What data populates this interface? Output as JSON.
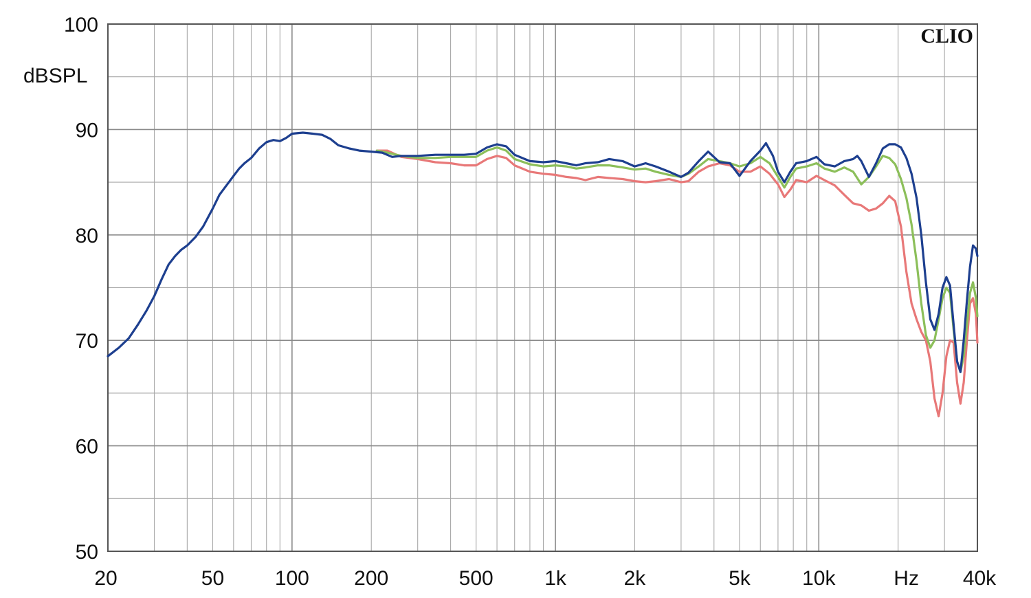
{
  "chart_data": {
    "type": "line",
    "x_scale": "log",
    "xlim": [
      20,
      40000
    ],
    "ylim": [
      50,
      100
    ],
    "grid": true,
    "ylabel": "dBSPL",
    "xunit_label": "Hz",
    "watermark": "CLIO",
    "x_ticks": [
      {
        "value": 20,
        "label": "20"
      },
      {
        "value": 50,
        "label": "50"
      },
      {
        "value": 100,
        "label": "100"
      },
      {
        "value": 200,
        "label": "200"
      },
      {
        "value": 500,
        "label": "500"
      },
      {
        "value": 1000,
        "label": "1k"
      },
      {
        "value": 2000,
        "label": "2k"
      },
      {
        "value": 5000,
        "label": "5k"
      },
      {
        "value": 10000,
        "label": "10k"
      },
      {
        "value": 40000,
        "label": "40k"
      }
    ],
    "hz_label_at": 20000,
    "y_ticks": [
      {
        "value": 100,
        "label": "100"
      },
      {
        "value": 90,
        "label": "90"
      },
      {
        "value": 80,
        "label": "80"
      },
      {
        "value": 70,
        "label": "70"
      },
      {
        "value": 60,
        "label": "60"
      },
      {
        "value": 50,
        "label": "50"
      }
    ],
    "series": [
      {
        "color": "#e87878",
        "points": [
          [
            210,
            88.0
          ],
          [
            230,
            88.0
          ],
          [
            260,
            87.4
          ],
          [
            300,
            87.2
          ],
          [
            350,
            86.9
          ],
          [
            400,
            86.8
          ],
          [
            450,
            86.6
          ],
          [
            500,
            86.6
          ],
          [
            550,
            87.2
          ],
          [
            600,
            87.5
          ],
          [
            650,
            87.3
          ],
          [
            700,
            86.6
          ],
          [
            800,
            86.0
          ],
          [
            900,
            85.8
          ],
          [
            1000,
            85.7
          ],
          [
            1100,
            85.5
          ],
          [
            1200,
            85.4
          ],
          [
            1300,
            85.2
          ],
          [
            1450,
            85.5
          ],
          [
            1600,
            85.4
          ],
          [
            1800,
            85.3
          ],
          [
            2000,
            85.1
          ],
          [
            2200,
            85.0
          ],
          [
            2400,
            85.1
          ],
          [
            2700,
            85.3
          ],
          [
            3000,
            85.0
          ],
          [
            3200,
            85.1
          ],
          [
            3500,
            86.0
          ],
          [
            3800,
            86.5
          ],
          [
            4200,
            86.8
          ],
          [
            4600,
            86.6
          ],
          [
            5000,
            86.0
          ],
          [
            5500,
            86.0
          ],
          [
            6000,
            86.5
          ],
          [
            6500,
            85.8
          ],
          [
            7000,
            84.8
          ],
          [
            7400,
            83.6
          ],
          [
            7800,
            84.3
          ],
          [
            8200,
            85.2
          ],
          [
            9000,
            85.0
          ],
          [
            9800,
            85.6
          ],
          [
            10500,
            85.2
          ],
          [
            11500,
            84.7
          ],
          [
            12500,
            83.8
          ],
          [
            13500,
            83.0
          ],
          [
            14500,
            82.8
          ],
          [
            15500,
            82.3
          ],
          [
            16500,
            82.5
          ],
          [
            17500,
            83.0
          ],
          [
            18500,
            83.7
          ],
          [
            19500,
            83.2
          ],
          [
            20500,
            80.8
          ],
          [
            21500,
            76.5
          ],
          [
            22500,
            73.5
          ],
          [
            23500,
            72.0
          ],
          [
            24500,
            70.8
          ],
          [
            25500,
            70.0
          ],
          [
            26500,
            68.0
          ],
          [
            27500,
            64.5
          ],
          [
            28500,
            62.8
          ],
          [
            29500,
            65.0
          ],
          [
            30500,
            68.5
          ],
          [
            31500,
            70.0
          ],
          [
            32500,
            69.8
          ],
          [
            33500,
            66.0
          ],
          [
            34500,
            64.0
          ],
          [
            35500,
            66.0
          ],
          [
            36500,
            70.0
          ],
          [
            37500,
            73.5
          ],
          [
            38500,
            74.0
          ],
          [
            39500,
            72.5
          ],
          [
            40000,
            69.8
          ]
        ]
      },
      {
        "color": "#8cbf5a",
        "points": [
          [
            210,
            88.0
          ],
          [
            230,
            87.8
          ],
          [
            260,
            87.5
          ],
          [
            300,
            87.3
          ],
          [
            350,
            87.3
          ],
          [
            400,
            87.4
          ],
          [
            450,
            87.4
          ],
          [
            500,
            87.4
          ],
          [
            550,
            88.0
          ],
          [
            600,
            88.3
          ],
          [
            650,
            88.0
          ],
          [
            700,
            87.2
          ],
          [
            800,
            86.7
          ],
          [
            900,
            86.5
          ],
          [
            1000,
            86.6
          ],
          [
            1100,
            86.5
          ],
          [
            1200,
            86.3
          ],
          [
            1300,
            86.4
          ],
          [
            1450,
            86.6
          ],
          [
            1600,
            86.6
          ],
          [
            1800,
            86.4
          ],
          [
            2000,
            86.2
          ],
          [
            2200,
            86.3
          ],
          [
            2400,
            86.0
          ],
          [
            2700,
            85.7
          ],
          [
            3000,
            85.5
          ],
          [
            3200,
            85.8
          ],
          [
            3500,
            86.5
          ],
          [
            3800,
            87.2
          ],
          [
            4200,
            87.0
          ],
          [
            4600,
            86.8
          ],
          [
            5000,
            86.5
          ],
          [
            5500,
            86.8
          ],
          [
            6000,
            87.4
          ],
          [
            6500,
            86.8
          ],
          [
            7000,
            85.5
          ],
          [
            7400,
            84.5
          ],
          [
            7800,
            85.5
          ],
          [
            8200,
            86.3
          ],
          [
            9000,
            86.5
          ],
          [
            9800,
            86.8
          ],
          [
            10500,
            86.3
          ],
          [
            11500,
            86.0
          ],
          [
            12500,
            86.4
          ],
          [
            13500,
            86.0
          ],
          [
            14500,
            84.8
          ],
          [
            15500,
            85.5
          ],
          [
            16500,
            86.5
          ],
          [
            17500,
            87.5
          ],
          [
            18500,
            87.3
          ],
          [
            19500,
            86.7
          ],
          [
            20500,
            85.3
          ],
          [
            21500,
            83.5
          ],
          [
            22500,
            81.0
          ],
          [
            23500,
            77.5
          ],
          [
            24500,
            73.5
          ],
          [
            25500,
            70.5
          ],
          [
            26500,
            69.3
          ],
          [
            27500,
            70.0
          ],
          [
            28500,
            72.0
          ],
          [
            29500,
            74.0
          ],
          [
            30500,
            75.0
          ],
          [
            31500,
            74.5
          ],
          [
            32500,
            71.0
          ],
          [
            33500,
            68.0
          ],
          [
            34500,
            67.0
          ],
          [
            35500,
            68.5
          ],
          [
            36500,
            71.5
          ],
          [
            37500,
            74.5
          ],
          [
            38500,
            75.5
          ],
          [
            39500,
            74.0
          ],
          [
            40000,
            72.3
          ]
        ]
      },
      {
        "color": "#1d3f8f",
        "points": [
          [
            20,
            68.5
          ],
          [
            22,
            69.3
          ],
          [
            24,
            70.2
          ],
          [
            26,
            71.5
          ],
          [
            28,
            72.8
          ],
          [
            30,
            74.2
          ],
          [
            32,
            75.8
          ],
          [
            34,
            77.2
          ],
          [
            36,
            78.0
          ],
          [
            38,
            78.6
          ],
          [
            40,
            79.0
          ],
          [
            43,
            79.8
          ],
          [
            46,
            80.8
          ],
          [
            50,
            82.5
          ],
          [
            53,
            83.8
          ],
          [
            56,
            84.6
          ],
          [
            60,
            85.6
          ],
          [
            63,
            86.3
          ],
          [
            66,
            86.8
          ],
          [
            70,
            87.3
          ],
          [
            75,
            88.2
          ],
          [
            80,
            88.8
          ],
          [
            85,
            89.0
          ],
          [
            90,
            88.9
          ],
          [
            95,
            89.2
          ],
          [
            100,
            89.6
          ],
          [
            110,
            89.7
          ],
          [
            120,
            89.6
          ],
          [
            130,
            89.5
          ],
          [
            140,
            89.1
          ],
          [
            150,
            88.5
          ],
          [
            165,
            88.2
          ],
          [
            180,
            88.0
          ],
          [
            200,
            87.9
          ],
          [
            220,
            87.8
          ],
          [
            240,
            87.4
          ],
          [
            260,
            87.5
          ],
          [
            300,
            87.5
          ],
          [
            350,
            87.6
          ],
          [
            400,
            87.6
          ],
          [
            450,
            87.6
          ],
          [
            500,
            87.7
          ],
          [
            550,
            88.3
          ],
          [
            600,
            88.6
          ],
          [
            650,
            88.4
          ],
          [
            700,
            87.6
          ],
          [
            800,
            87.0
          ],
          [
            900,
            86.9
          ],
          [
            1000,
            87.0
          ],
          [
            1100,
            86.8
          ],
          [
            1200,
            86.6
          ],
          [
            1300,
            86.8
          ],
          [
            1450,
            86.9
          ],
          [
            1600,
            87.2
          ],
          [
            1800,
            87.0
          ],
          [
            2000,
            86.5
          ],
          [
            2200,
            86.8
          ],
          [
            2400,
            86.5
          ],
          [
            2700,
            86.0
          ],
          [
            3000,
            85.5
          ],
          [
            3200,
            85.9
          ],
          [
            3500,
            87.0
          ],
          [
            3800,
            87.9
          ],
          [
            4200,
            86.9
          ],
          [
            4600,
            86.8
          ],
          [
            5000,
            85.6
          ],
          [
            5500,
            87.0
          ],
          [
            6000,
            88.0
          ],
          [
            6300,
            88.7
          ],
          [
            6700,
            87.5
          ],
          [
            7000,
            86.0
          ],
          [
            7400,
            85.0
          ],
          [
            7800,
            86.0
          ],
          [
            8200,
            86.8
          ],
          [
            9000,
            87.0
          ],
          [
            9800,
            87.4
          ],
          [
            10500,
            86.7
          ],
          [
            11500,
            86.5
          ],
          [
            12500,
            87.0
          ],
          [
            13500,
            87.2
          ],
          [
            14000,
            87.5
          ],
          [
            14500,
            87.0
          ],
          [
            15500,
            85.5
          ],
          [
            16500,
            86.8
          ],
          [
            17500,
            88.2
          ],
          [
            18500,
            88.6
          ],
          [
            19500,
            88.6
          ],
          [
            20500,
            88.3
          ],
          [
            21500,
            87.3
          ],
          [
            22500,
            85.8
          ],
          [
            23500,
            83.5
          ],
          [
            24500,
            80.0
          ],
          [
            25500,
            75.5
          ],
          [
            26500,
            72.0
          ],
          [
            27500,
            71.0
          ],
          [
            28500,
            72.5
          ],
          [
            29500,
            75.0
          ],
          [
            30500,
            76.0
          ],
          [
            31500,
            75.2
          ],
          [
            32500,
            71.5
          ],
          [
            33500,
            68.0
          ],
          [
            34500,
            67.0
          ],
          [
            35500,
            70.0
          ],
          [
            36500,
            73.8
          ],
          [
            37500,
            77.0
          ],
          [
            38500,
            79.0
          ],
          [
            39500,
            78.7
          ],
          [
            40000,
            78.0
          ]
        ]
      }
    ]
  }
}
